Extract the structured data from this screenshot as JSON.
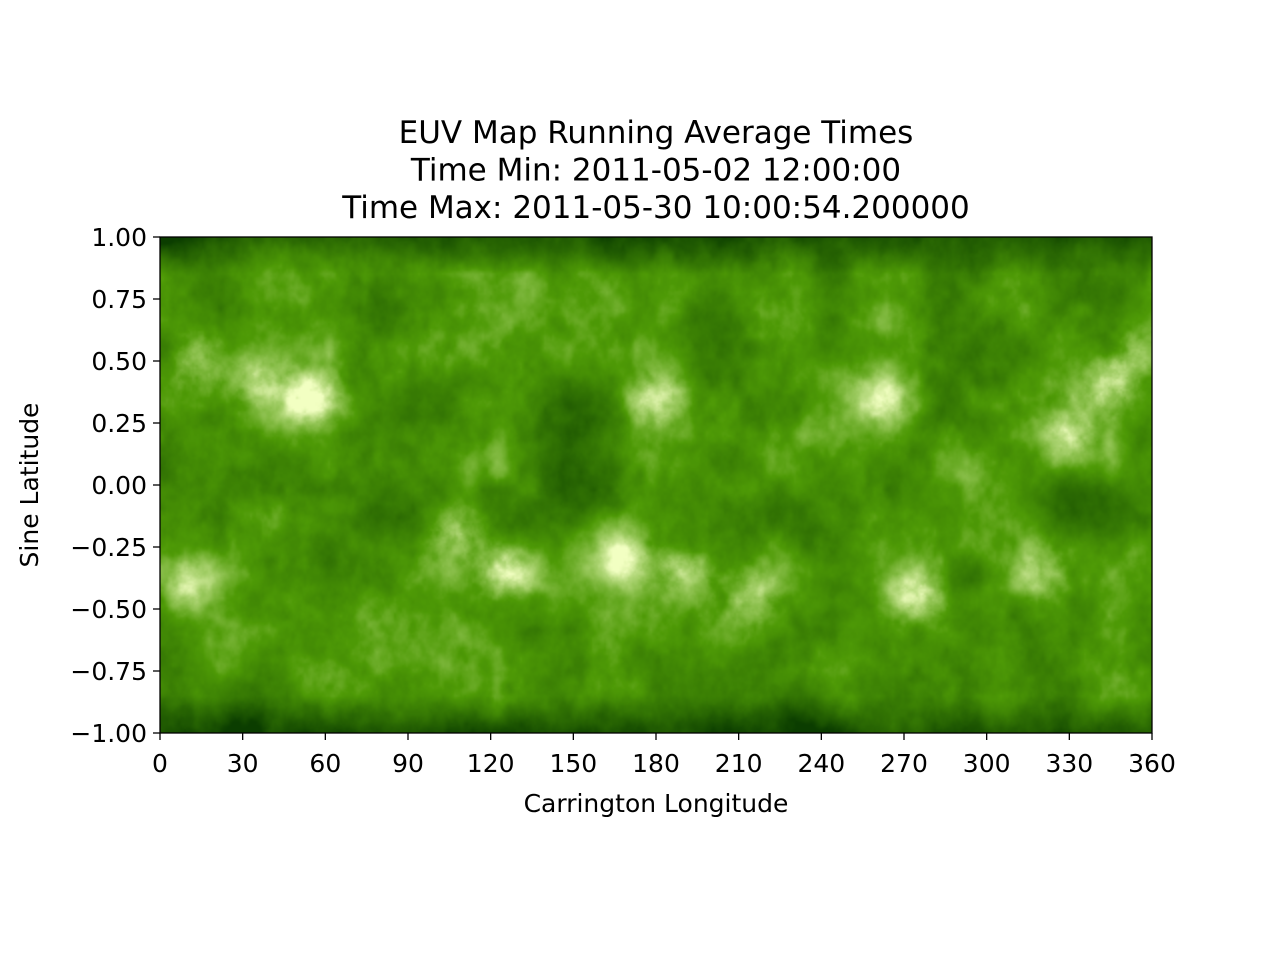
{
  "chart_data": {
    "type": "heatmap",
    "title": "EUV Map Running Average Times",
    "subtitle_lines": [
      "Time Min: 2011-05-02 12:00:00",
      "Time Max: 2011-05-30 10:00:54.200000"
    ],
    "xlabel": "Carrington Longitude",
    "ylabel": "Sine Latitude",
    "xlim": [
      0,
      360
    ],
    "ylim": [
      -1.0,
      1.0
    ],
    "xticks": [
      0,
      30,
      60,
      90,
      120,
      150,
      180,
      210,
      240,
      270,
      300,
      330,
      360
    ],
    "xtick_labels": [
      "0",
      "30",
      "60",
      "90",
      "120",
      "150",
      "180",
      "210",
      "240",
      "270",
      "300",
      "330",
      "360"
    ],
    "yticks": [
      1.0,
      0.75,
      0.5,
      0.25,
      0.0,
      -0.25,
      -0.5,
      -0.75,
      -1.0
    ],
    "ytick_labels": [
      "1.00",
      "0.75",
      "0.50",
      "0.25",
      "0.00",
      "−0.25",
      "−0.50",
      "−0.75",
      "−1.00"
    ],
    "grid": false,
    "colormap": {
      "dark": "#0b3d00",
      "mid": "#4e9a06",
      "bright": "#f2ffc2"
    },
    "bright_regions": [
      {
        "lon": 55,
        "lat": 0.35,
        "intensity": 1.0
      },
      {
        "lon": 35,
        "lat": 0.42,
        "intensity": 0.6
      },
      {
        "lon": 12,
        "lat": 0.5,
        "intensity": 0.5
      },
      {
        "lon": 10,
        "lat": -0.4,
        "intensity": 0.6
      },
      {
        "lon": 107,
        "lat": -0.2,
        "intensity": 0.6
      },
      {
        "lon": 126,
        "lat": -0.35,
        "intensity": 0.8
      },
      {
        "lon": 180,
        "lat": 0.35,
        "intensity": 0.7
      },
      {
        "lon": 168,
        "lat": -0.3,
        "intensity": 0.7
      },
      {
        "lon": 190,
        "lat": -0.35,
        "intensity": 0.6
      },
      {
        "lon": 215,
        "lat": -0.45,
        "intensity": 0.5
      },
      {
        "lon": 262,
        "lat": 0.35,
        "intensity": 0.7
      },
      {
        "lon": 275,
        "lat": -0.45,
        "intensity": 0.8
      },
      {
        "lon": 330,
        "lat": 0.2,
        "intensity": 0.7
      },
      {
        "lon": 345,
        "lat": 0.4,
        "intensity": 0.8
      },
      {
        "lon": 320,
        "lat": -0.35,
        "intensity": 0.5
      },
      {
        "lon": 355,
        "lat": 0.55,
        "intensity": 0.5
      }
    ],
    "dark_regions": [
      {
        "lon": 80,
        "lat": 0.75,
        "intensity": 0.7
      },
      {
        "lon": 150,
        "lat": 0.3,
        "intensity": 0.8
      },
      {
        "lon": 158,
        "lat": 0.0,
        "intensity": 0.9
      },
      {
        "lon": 200,
        "lat": 0.7,
        "intensity": 0.6
      },
      {
        "lon": 228,
        "lat": -0.92,
        "intensity": 0.8
      },
      {
        "lon": 332,
        "lat": -0.05,
        "intensity": 0.8
      },
      {
        "lon": 290,
        "lat": -0.4,
        "intensity": 0.7
      },
      {
        "lon": 30,
        "lat": -0.95,
        "intensity": 0.6
      },
      {
        "lon": 300,
        "lat": 0.95,
        "intensity": 0.4
      }
    ]
  }
}
